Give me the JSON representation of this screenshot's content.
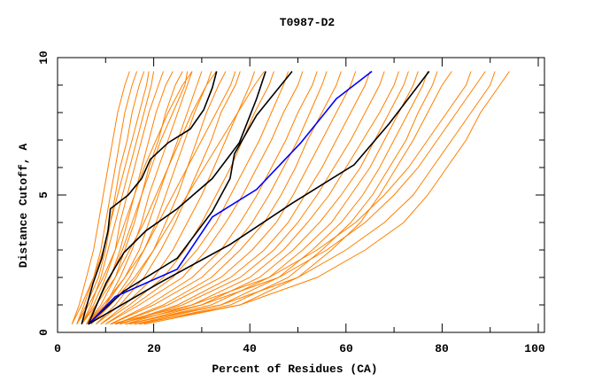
{
  "chart_data": {
    "type": "line",
    "title": "T0987-D2",
    "xlabel": "Percent of Residues (CA)",
    "ylabel": "Distance Cutoff, A",
    "xlim": [
      0,
      100
    ],
    "ylim": [
      0,
      10
    ],
    "x_ticks": [
      "0",
      "20",
      "40",
      "60",
      "80",
      "100"
    ],
    "y_ticks": [
      "0",
      "5",
      "10"
    ],
    "grid": false,
    "colors": {
      "models": "#ff8000",
      "highlight_black": "#000000",
      "highlight_blue": "#0000ff"
    },
    "y_levels": [
      0.3,
      1,
      2,
      3,
      4,
      5,
      6,
      7,
      8,
      9,
      9.5
    ],
    "model_curves_x": [
      [
        3,
        4.5,
        6,
        7.5,
        8.5,
        9.5,
        10.5,
        11.5,
        12.5,
        14,
        15
      ],
      [
        4,
        5.5,
        7.5,
        9,
        10,
        11,
        12,
        13,
        14,
        15.5,
        16.5
      ],
      [
        4,
        6,
        8.5,
        10,
        11,
        12,
        13,
        14.5,
        15.5,
        17,
        18
      ],
      [
        5,
        7,
        9,
        10.5,
        12,
        13.5,
        15,
        16.5,
        18,
        19.5,
        20
      ],
      [
        5,
        7.5,
        10,
        12,
        13,
        14.5,
        16,
        17.5,
        19,
        21,
        22
      ],
      [
        6,
        8,
        11,
        13,
        14.5,
        16,
        17.5,
        19,
        20.5,
        22.5,
        24
      ],
      [
        6,
        9,
        12,
        14,
        16,
        17.5,
        19,
        21,
        22.5,
        24.5,
        26
      ],
      [
        7,
        10,
        13,
        15.5,
        17.5,
        19,
        21,
        23,
        25,
        27,
        28
      ],
      [
        6,
        10,
        14,
        17,
        19,
        21,
        23,
        25,
        27,
        29,
        30
      ],
      [
        7,
        11,
        15,
        18,
        20.5,
        22.5,
        24.5,
        26.5,
        28.5,
        31,
        32
      ],
      [
        8,
        12,
        16.5,
        20,
        22.5,
        25,
        27,
        29,
        31,
        33.5,
        35
      ],
      [
        8,
        13,
        18,
        21.5,
        24.5,
        27,
        29.5,
        32,
        34,
        37,
        38
      ],
      [
        9,
        14,
        20,
        24,
        27,
        30,
        32.5,
        35,
        37.5,
        40,
        41
      ],
      [
        9,
        15,
        22,
        26.5,
        30,
        33,
        36,
        38.5,
        41,
        44,
        45
      ],
      [
        10,
        16,
        24,
        29,
        33,
        36,
        39,
        42,
        44.5,
        47,
        48
      ],
      [
        10,
        17,
        26,
        31,
        35,
        38.5,
        41.5,
        44.5,
        47,
        50,
        51
      ],
      [
        11,
        19,
        28,
        34,
        38,
        41.5,
        44.5,
        47.5,
        50,
        53,
        54
      ],
      [
        11,
        20,
        30,
        36,
        40.5,
        44,
        47,
        50,
        52.5,
        55,
        56
      ],
      [
        12,
        22,
        32,
        38,
        43,
        46.5,
        49.5,
        52,
        55,
        58,
        59
      ],
      [
        12,
        23,
        34,
        40.5,
        45.5,
        49,
        52,
        55,
        58,
        61,
        62
      ],
      [
        13,
        25,
        36,
        43,
        48,
        51.5,
        55,
        58,
        61,
        64,
        65
      ],
      [
        13,
        26,
        38,
        45,
        50,
        54,
        57.5,
        61,
        64,
        67,
        68
      ],
      [
        14,
        28,
        40,
        47,
        52,
        56.5,
        60,
        63.5,
        67,
        70,
        71
      ],
      [
        15,
        30,
        42,
        49,
        54.5,
        59,
        63,
        66,
        69,
        72,
        73
      ],
      [
        15,
        32,
        44,
        51,
        57,
        61,
        65,
        68,
        71,
        74,
        75
      ],
      [
        16,
        34,
        46,
        53,
        59,
        63.5,
        67,
        70,
        73,
        76,
        77
      ],
      [
        17,
        36,
        48,
        55,
        61,
        65.5,
        69,
        72.5,
        75,
        78,
        79
      ],
      [
        18,
        38,
        50,
        57,
        63,
        67,
        70.5,
        74,
        77,
        80,
        82
      ],
      [
        12,
        30,
        46,
        56,
        64,
        70,
        75,
        79,
        83,
        87,
        89
      ],
      [
        14,
        34,
        50,
        60,
        68,
        74,
        78,
        82,
        86,
        90,
        91
      ],
      [
        16,
        38,
        54,
        64,
        72,
        77,
        81,
        85,
        88,
        92,
        94
      ],
      [
        11,
        28,
        44,
        54,
        62,
        68,
        73,
        77,
        81,
        85,
        86
      ],
      [
        4,
        6.5,
        9.5,
        12,
        14,
        16,
        18,
        20.5,
        23,
        26,
        28
      ],
      [
        5,
        8,
        12,
        15,
        18,
        20.5,
        23,
        25.5,
        28,
        31,
        33
      ],
      [
        6,
        9.5,
        14,
        18,
        21,
        24,
        27,
        30,
        33,
        36,
        37
      ],
      [
        7,
        11,
        16,
        20,
        23.5,
        27,
        30.5,
        34,
        37.5,
        41,
        43
      ],
      [
        3,
        5,
        7.5,
        9.5,
        11,
        12.5,
        14,
        15.5,
        17,
        18.5,
        19
      ],
      [
        5,
        8,
        11,
        13.5,
        15.5,
        17.5,
        19.5,
        21.5,
        24,
        26.5,
        27
      ]
    ],
    "highlight_curves": [
      {
        "color": "#000000",
        "points": [
          [
            5,
            0.3
          ],
          [
            7.4,
            1.8
          ],
          [
            9.2,
            2.7
          ],
          [
            10.5,
            3.7
          ],
          [
            11,
            4.5
          ],
          [
            14.7,
            5
          ],
          [
            17.5,
            5.6
          ],
          [
            19.3,
            6.3
          ],
          [
            23,
            6.9
          ],
          [
            27.6,
            7.4
          ],
          [
            30.4,
            8.1
          ],
          [
            32.2,
            8.9
          ],
          [
            33.1,
            9.5
          ]
        ]
      },
      {
        "color": "#000000",
        "points": [
          [
            6.4,
            0.3
          ],
          [
            10.1,
            1.8
          ],
          [
            13.8,
            2.9
          ],
          [
            18.4,
            3.7
          ],
          [
            24.9,
            4.5
          ],
          [
            32.2,
            5.6
          ],
          [
            37.8,
            6.9
          ],
          [
            41.4,
            8.5
          ],
          [
            43.3,
            9.5
          ]
        ]
      },
      {
        "color": "#000000",
        "points": [
          [
            6.4,
            0.3
          ],
          [
            13.8,
            1.5
          ],
          [
            24.9,
            2.7
          ],
          [
            32.2,
            4.4
          ],
          [
            35.9,
            5.6
          ],
          [
            36.8,
            6.5
          ],
          [
            41.4,
            7.9
          ],
          [
            48.8,
            9.5
          ]
        ]
      },
      {
        "color": "#0000ff",
        "points": [
          [
            6.4,
            0.3
          ],
          [
            12,
            1.3
          ],
          [
            24.9,
            2.3
          ],
          [
            32.2,
            4.2
          ],
          [
            41.4,
            5.2
          ],
          [
            50.6,
            6.9
          ],
          [
            58,
            8.5
          ],
          [
            65.4,
            9.5
          ]
        ]
      },
      {
        "color": "#000000",
        "points": [
          [
            6.4,
            0.3
          ],
          [
            21.2,
            1.8
          ],
          [
            35.9,
            3.2
          ],
          [
            48.8,
            4.7
          ],
          [
            61.7,
            6.1
          ],
          [
            69,
            7.6
          ],
          [
            77.3,
            9.5
          ]
        ]
      }
    ]
  }
}
